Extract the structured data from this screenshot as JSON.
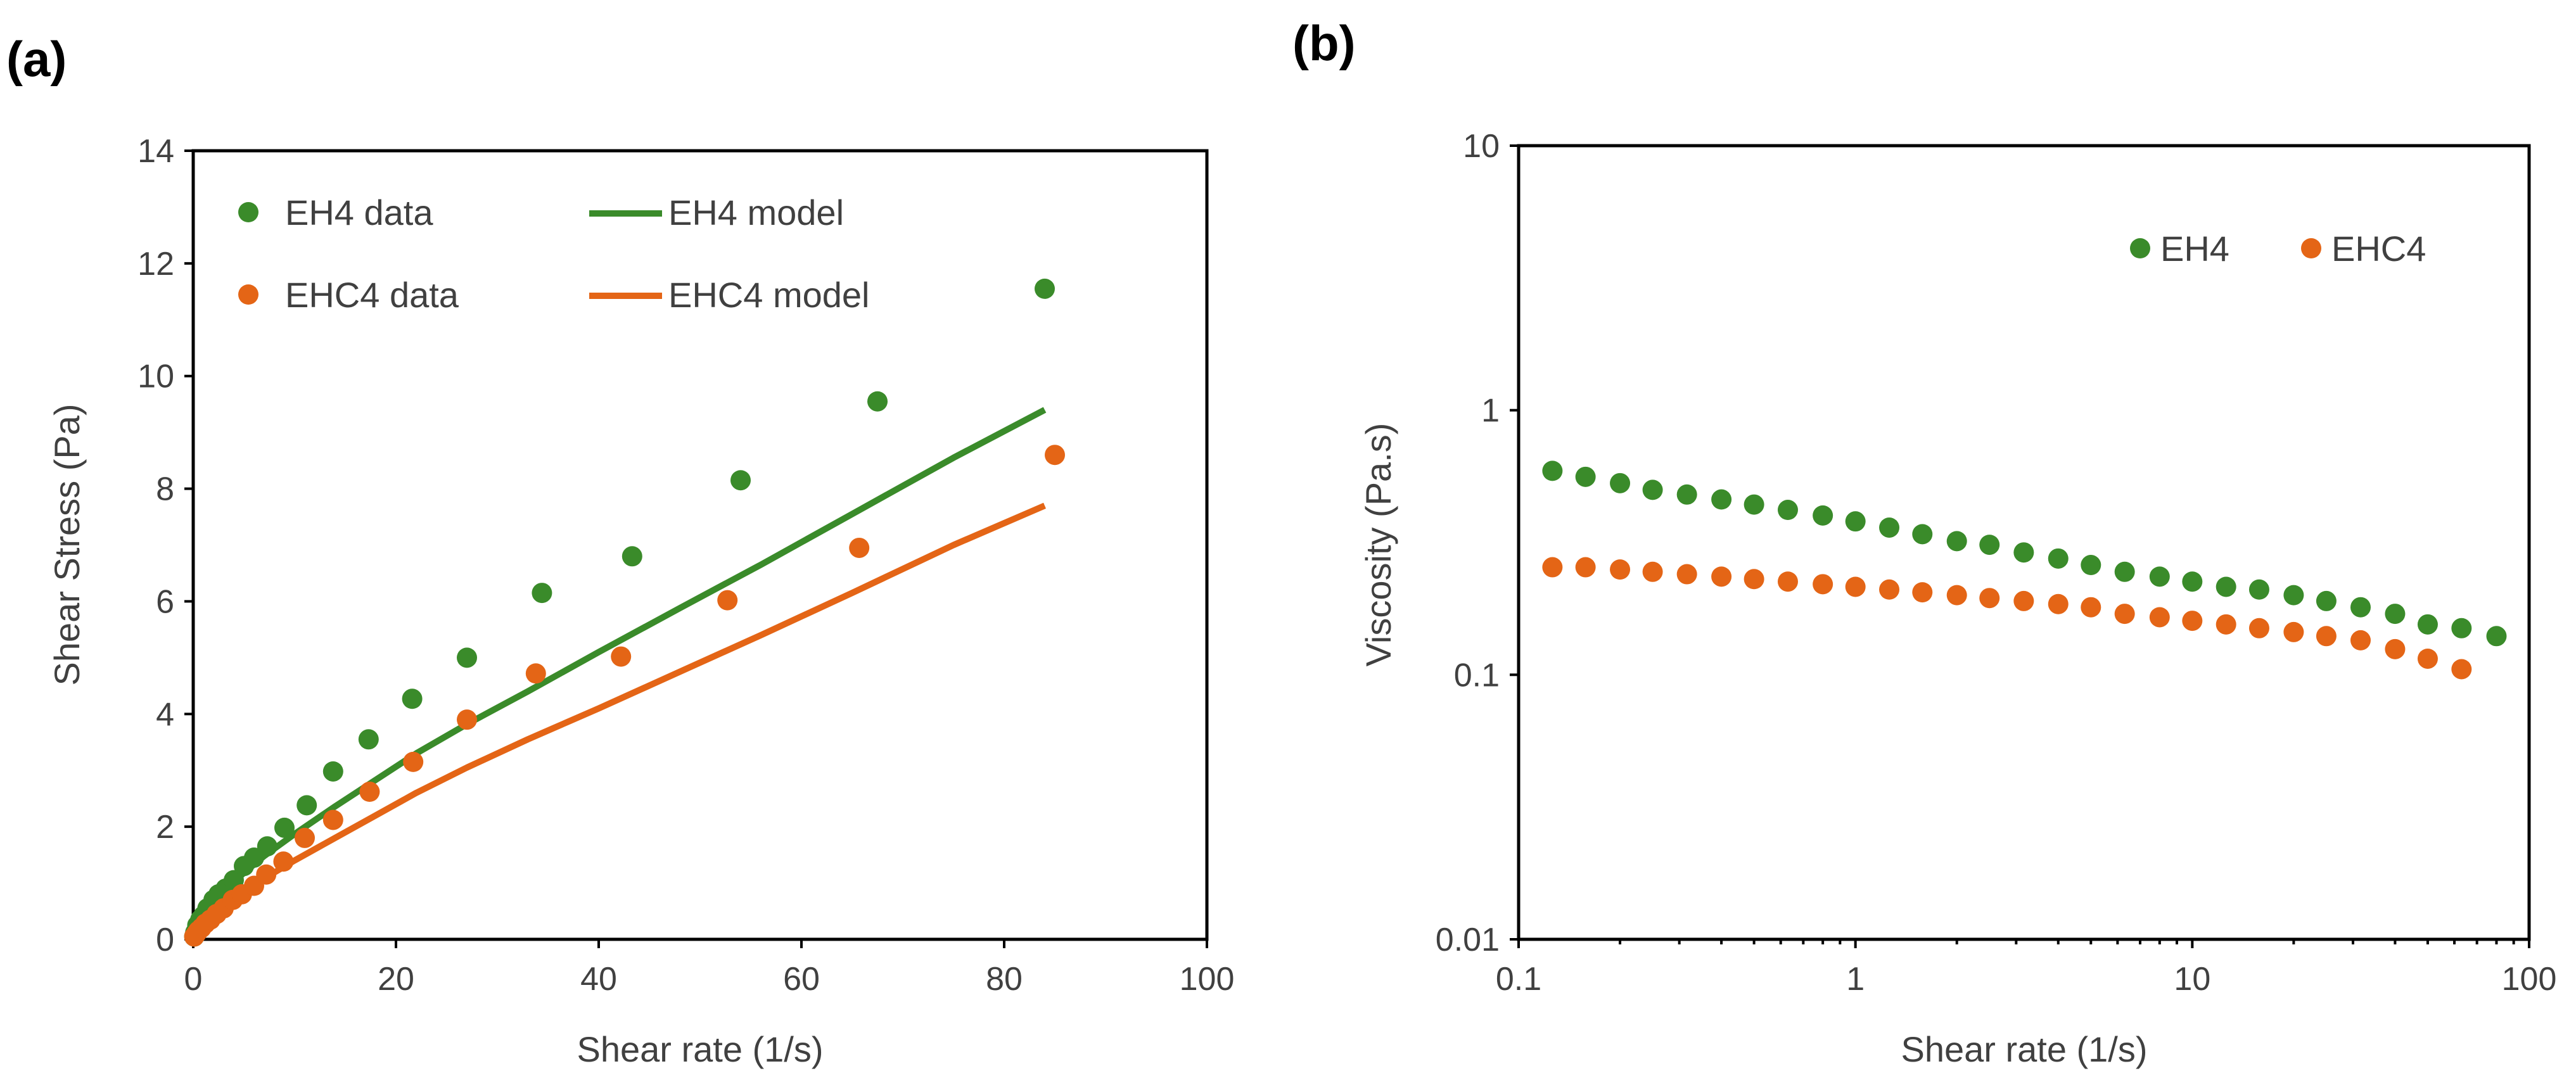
{
  "colors": {
    "green": "#3a8b2a",
    "orange": "#e46516"
  },
  "chart_data": [
    {
      "type": "scatter",
      "panel_label": "(a)",
      "xlabel": "Shear rate (1/s)",
      "ylabel": "Shear Stress (Pa)",
      "xlim": [
        0,
        100
      ],
      "ylim": [
        0,
        14
      ],
      "xticks": [
        "0",
        "20",
        "40",
        "60",
        "80",
        "100"
      ],
      "yticks": [
        "0",
        "2",
        "4",
        "6",
        "8",
        "10",
        "12",
        "14"
      ],
      "grid": false,
      "legend_position": "top-left",
      "series": [
        {
          "name": "EH4 data",
          "kind": "points",
          "color": "#3a8b2a",
          "x": [
            0.1,
            0.2,
            0.4,
            0.7,
            1.0,
            1.4,
            2.0,
            2.5,
            3.2,
            4.0,
            5.0,
            6.0,
            7.3,
            9.0,
            11.2,
            13.8,
            17.3,
            21.6,
            27.0,
            34.4,
            43.3,
            54.0,
            67.5,
            84.0
          ],
          "y": [
            0.05,
            0.12,
            0.25,
            0.35,
            0.42,
            0.55,
            0.7,
            0.8,
            0.9,
            1.05,
            1.3,
            1.45,
            1.65,
            1.98,
            2.38,
            2.98,
            3.55,
            4.27,
            5.0,
            6.15,
            6.8,
            8.15,
            9.55,
            11.55
          ]
        },
        {
          "name": "EHC4 data",
          "kind": "points",
          "color": "#e46516",
          "x": [
            0.1,
            0.3,
            0.5,
            0.8,
            1.2,
            1.7,
            2.3,
            3.0,
            3.9,
            4.8,
            6.0,
            7.2,
            8.9,
            11.0,
            13.8,
            17.4,
            21.7,
            27.0,
            33.8,
            42.2,
            52.7,
            65.7,
            85.0
          ],
          "y": [
            0.05,
            0.1,
            0.15,
            0.2,
            0.28,
            0.35,
            0.45,
            0.55,
            0.7,
            0.8,
            0.95,
            1.15,
            1.38,
            1.8,
            2.12,
            2.62,
            3.15,
            3.9,
            4.72,
            5.02,
            6.02,
            6.95,
            8.6
          ]
        },
        {
          "name": "EH4 model",
          "kind": "line",
          "color": "#3a8b2a",
          "x": [
            0,
            0.5,
            1,
            2,
            3,
            5,
            7,
            10,
            14,
            18,
            22,
            27,
            33,
            40,
            48,
            56,
            65,
            75,
            84
          ],
          "y": [
            0,
            0.3,
            0.42,
            0.65,
            0.85,
            1.18,
            1.48,
            1.87,
            2.36,
            2.83,
            3.3,
            3.82,
            4.4,
            5.1,
            5.88,
            6.65,
            7.55,
            8.55,
            9.4
          ]
        },
        {
          "name": "EHC4 model",
          "kind": "line",
          "color": "#e46516",
          "x": [
            0,
            0.5,
            1,
            2,
            3,
            5,
            7,
            10,
            14,
            18,
            22,
            27,
            33,
            40,
            48,
            56,
            65,
            75,
            84
          ],
          "y": [
            0,
            0.2,
            0.3,
            0.45,
            0.6,
            0.85,
            1.08,
            1.4,
            1.8,
            2.2,
            2.6,
            3.05,
            3.55,
            4.1,
            4.75,
            5.4,
            6.15,
            7.0,
            7.7
          ]
        }
      ]
    },
    {
      "type": "scatter",
      "panel_label": "(b)",
      "xlabel": "Shear rate (1/s)",
      "ylabel": "Viscosity (Pa.s)",
      "xscale": "log",
      "yscale": "log",
      "xlim": [
        0.1,
        100
      ],
      "ylim": [
        0.01,
        10
      ],
      "xticks": [
        "0.1",
        "1",
        "10",
        "100"
      ],
      "yticks": [
        "0.01",
        "0.1",
        "1",
        "10"
      ],
      "grid": false,
      "legend_position": "top-right",
      "series": [
        {
          "name": "EH4",
          "kind": "points",
          "color": "#3a8b2a",
          "x": [
            0.126,
            0.158,
            0.2,
            0.25,
            0.316,
            0.4,
            0.5,
            0.63,
            0.8,
            1.0,
            1.26,
            1.58,
            2.0,
            2.5,
            3.16,
            4.0,
            5.0,
            6.3,
            8.0,
            10.0,
            12.6,
            15.8,
            20.0,
            25.0,
            31.6,
            40.0,
            50.0,
            63.0,
            80.0
          ],
          "y": [
            0.59,
            0.56,
            0.53,
            0.5,
            0.48,
            0.46,
            0.44,
            0.42,
            0.4,
            0.38,
            0.36,
            0.34,
            0.32,
            0.31,
            0.29,
            0.275,
            0.26,
            0.245,
            0.235,
            0.225,
            0.215,
            0.21,
            0.2,
            0.19,
            0.18,
            0.17,
            0.155,
            0.15,
            0.14
          ]
        },
        {
          "name": "EHC4",
          "kind": "points",
          "color": "#e46516",
          "x": [
            0.126,
            0.158,
            0.2,
            0.25,
            0.316,
            0.4,
            0.5,
            0.63,
            0.8,
            1.0,
            1.26,
            1.58,
            2.0,
            2.5,
            3.16,
            4.0,
            5.0,
            6.3,
            8.0,
            10.0,
            12.6,
            15.8,
            20.0,
            25.0,
            31.6,
            40.0,
            50.0,
            63.0
          ],
          "y": [
            0.255,
            0.255,
            0.25,
            0.245,
            0.24,
            0.235,
            0.23,
            0.225,
            0.22,
            0.215,
            0.21,
            0.205,
            0.2,
            0.195,
            0.19,
            0.185,
            0.18,
            0.17,
            0.165,
            0.16,
            0.155,
            0.15,
            0.145,
            0.14,
            0.135,
            0.125,
            0.115,
            0.105
          ]
        }
      ]
    }
  ]
}
